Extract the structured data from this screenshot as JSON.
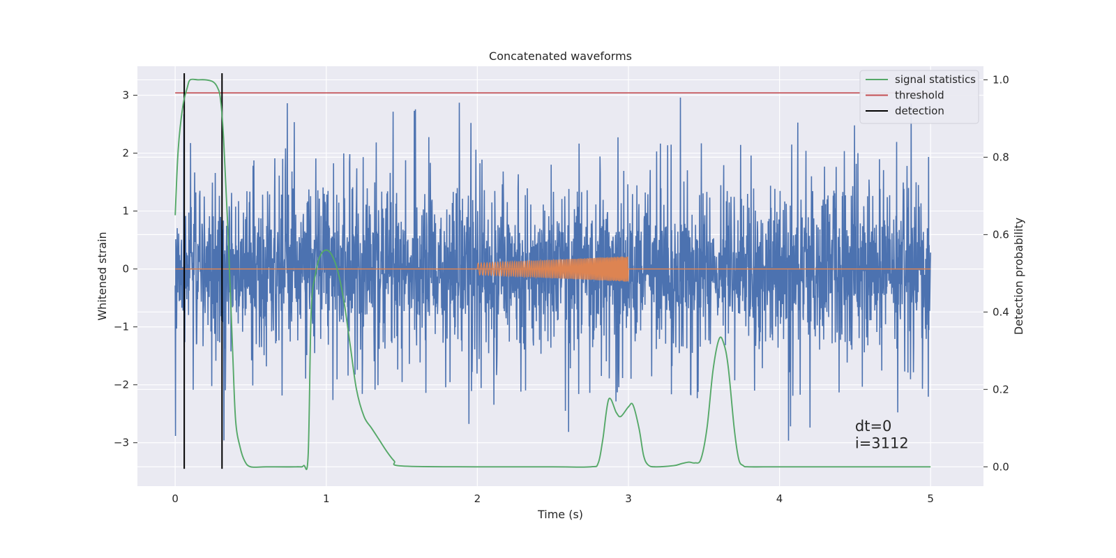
{
  "chart_data": {
    "type": "line",
    "title": "Concatenated waveforms",
    "xlabel": "Time (s)",
    "ylabel": "Whitened strain",
    "ylabel_right": "Detection probability",
    "xlim": [
      -0.25,
      5.35
    ],
    "ylim": [
      -3.75,
      3.5
    ],
    "ylim_right": [
      -0.05,
      1.035
    ],
    "x_ticks": [
      "0",
      "1",
      "2",
      "3",
      "4",
      "5"
    ],
    "y_ticks": [
      "−3",
      "−2",
      "−1",
      "0",
      "1",
      "2",
      "3"
    ],
    "y_right_ticks": [
      "0.0",
      "0.2",
      "0.4",
      "0.6",
      "0.8",
      "1.0"
    ],
    "grid": true,
    "legend_position": "top-right",
    "colors": {
      "background": "#eaeaf2",
      "grid": "#ffffff",
      "strain": "#4c72b0",
      "injection": "#dd8452",
      "signal_statistics": "#55a868",
      "threshold": "#c44e52",
      "detection": "#000000"
    },
    "series": [
      {
        "key": "strain",
        "axis": "left",
        "description_kind": "noise",
        "x_range": [
          0,
          5
        ],
        "approx_band_amplitude": 0.75,
        "approx_peak": 3.05
      },
      {
        "key": "injection",
        "axis": "left",
        "x_range": [
          0,
          5
        ],
        "chirp_x_range": [
          2.0,
          3.0
        ],
        "chirp_amplitude_start": 0.1,
        "chirp_amplitude_end": 0.22
      },
      {
        "name": "signal statistics",
        "key": "signal_statistics",
        "axis": "right",
        "x": [
          0.0,
          0.02,
          0.05,
          0.08,
          0.1,
          0.15,
          0.2,
          0.25,
          0.28,
          0.3,
          0.32,
          0.35,
          0.38,
          0.4,
          0.43,
          0.46,
          0.5,
          0.6,
          0.8,
          0.85,
          0.88,
          0.9,
          0.93,
          0.96,
          1.0,
          1.04,
          1.08,
          1.12,
          1.16,
          1.2,
          1.25,
          1.3,
          1.35,
          1.4,
          1.45,
          1.5,
          2.0,
          2.5,
          2.75,
          2.8,
          2.83,
          2.87,
          2.92,
          2.95,
          3.0,
          3.03,
          3.07,
          3.1,
          3.13,
          3.18,
          3.3,
          3.35,
          3.4,
          3.44,
          3.48,
          3.52,
          3.56,
          3.6,
          3.63,
          3.66,
          3.7,
          3.73,
          3.76,
          3.8,
          4.0,
          4.5,
          5.0
        ],
        "y": [
          0.65,
          0.82,
          0.93,
          0.98,
          1.0,
          1.0,
          1.0,
          0.995,
          0.98,
          0.95,
          0.85,
          0.6,
          0.3,
          0.12,
          0.05,
          0.015,
          0.0,
          0.0,
          0.0,
          0.003,
          0.03,
          0.4,
          0.5,
          0.545,
          0.56,
          0.545,
          0.5,
          0.42,
          0.31,
          0.2,
          0.13,
          0.1,
          0.07,
          0.04,
          0.015,
          0.002,
          0.0,
          0.0,
          0.0,
          0.01,
          0.07,
          0.175,
          0.14,
          0.13,
          0.155,
          0.16,
          0.1,
          0.03,
          0.005,
          0.0,
          0.003,
          0.008,
          0.012,
          0.01,
          0.02,
          0.1,
          0.25,
          0.33,
          0.32,
          0.26,
          0.1,
          0.02,
          0.003,
          0.0,
          0.0,
          0.0,
          0.0
        ]
      },
      {
        "name": "threshold",
        "key": "threshold",
        "axis": "left",
        "x": [
          0,
          5
        ],
        "y": [
          3.04,
          3.04
        ]
      },
      {
        "name": "detection",
        "key": "detection",
        "axis": "left",
        "x_positions": [
          0.06,
          0.31
        ],
        "y_range": [
          -3.45,
          3.38
        ]
      }
    ],
    "annotations": [
      {
        "text": "dt=0",
        "x": 4.5,
        "y": -2.7
      },
      {
        "text": "i=3112",
        "x": 4.5,
        "y": -3.0
      }
    ]
  }
}
